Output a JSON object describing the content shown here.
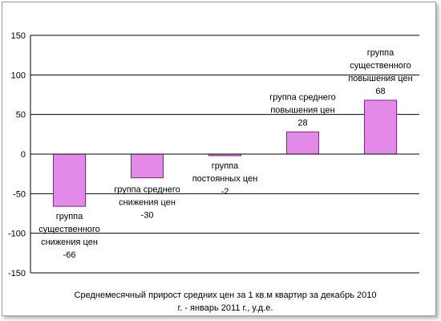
{
  "chart_data": {
    "type": "bar",
    "categories": [
      [
        "группа",
        "существенного",
        "снижения цен"
      ],
      [
        "группа среднего",
        "снижения цен"
      ],
      [
        "группа",
        "постоянных цен"
      ],
      [
        "группа  среднего",
        "повышения цен"
      ],
      [
        "группа",
        "существенного",
        "повышения цен"
      ]
    ],
    "values": [
      -66,
      -30,
      -2,
      28,
      68
    ],
    "value_labels": [
      "-66",
      "-30",
      "-2",
      "28",
      "68"
    ],
    "ylim": [
      -150,
      150
    ],
    "yticks": [
      "150",
      "100",
      "50",
      "0",
      "-50",
      "-100",
      "-150"
    ],
    "ytick_values": [
      150,
      100,
      50,
      0,
      -50,
      -100,
      -150
    ],
    "grid": true,
    "title_lines": [
      "Среднемесячный прирост средних цен за 1 кв.м квартир за декабрь 2010",
      "г. - январь 2011 г., у.д.е."
    ],
    "colors": {
      "bar_fill": "#e38ae8",
      "bar_stroke": "#7a2a80",
      "grid": "#000000"
    }
  }
}
